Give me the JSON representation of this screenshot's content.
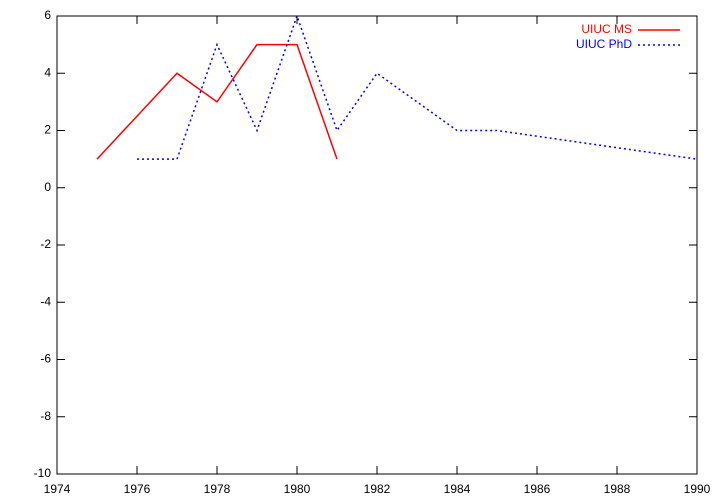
{
  "chart_data": {
    "type": "line",
    "series": [
      {
        "name": "UIUC MS",
        "color": "#ff0000",
        "style": "solid",
        "x": [
          1975,
          1977,
          1978,
          1979,
          1980,
          1981
        ],
        "values": [
          1,
          4,
          3,
          5,
          5,
          1
        ]
      },
      {
        "name": "UIUC PhD",
        "color": "#0000ff",
        "style": "dotted",
        "x": [
          1976,
          1977,
          1978,
          1979,
          1980,
          1981,
          1982,
          1984,
          1985,
          1990
        ],
        "values": [
          1,
          1,
          5,
          2,
          6,
          2,
          4,
          2,
          2,
          1
        ]
      }
    ],
    "xlim": [
      1974,
      1990
    ],
    "xticks": [
      1974,
      1976,
      1978,
      1980,
      1982,
      1984,
      1986,
      1988,
      1990
    ],
    "ylim": [
      -10,
      6
    ],
    "yticks": [
      -10,
      -8,
      -6,
      -4,
      -2,
      0,
      2,
      4,
      6
    ],
    "legend": "top-right",
    "grid": false
  }
}
